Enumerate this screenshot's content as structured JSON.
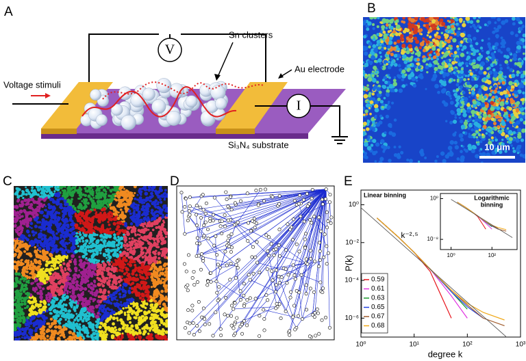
{
  "panels": {
    "a": {
      "label": "A",
      "v_meter": "V",
      "i_meter": "I",
      "sn_clusters": "Sn clusters",
      "au_electrode": "Au electrode",
      "voltage_stimuli": "Voltage stimuli",
      "substrate": "Si₃N₄ substrate"
    },
    "b": {
      "label": "B",
      "scale_bar": "10 μm"
    },
    "c": {
      "label": "C"
    },
    "d": {
      "label": "D"
    },
    "e": {
      "label": "E"
    }
  },
  "chart_data": {
    "type": "line",
    "x_label": "degree k",
    "y_label": "P(k)",
    "annotation": "Linear binning",
    "log_x": true,
    "log_y": true,
    "xlim": [
      1,
      1000
    ],
    "ylim": [
      1e-07,
      6
    ],
    "xticks": [
      {
        "value": 1,
        "label": "10⁰"
      },
      {
        "value": 10,
        "label": "10¹"
      },
      {
        "value": 100,
        "label": "10²"
      },
      {
        "value": 1000,
        "label": "10³"
      }
    ],
    "yticks": [
      {
        "value": 1,
        "label": "10⁰"
      },
      {
        "value": 0.01,
        "label": "10⁻²"
      },
      {
        "value": 0.0001,
        "label": "10⁻⁴"
      },
      {
        "value": 1e-06,
        "label": "10⁻⁶"
      }
    ],
    "x": [
      2,
      5,
      10,
      20,
      50,
      100,
      200,
      500
    ],
    "series": [
      {
        "name": "0.59",
        "color": "#e8141c",
        "values": [
          0.2,
          0.02,
          0.003,
          0.0003,
          1e-06,
          null,
          null,
          null
        ]
      },
      {
        "name": "0.61",
        "color": "#e030e0",
        "values": [
          0.2,
          0.02,
          0.003,
          0.0004,
          1.5e-05,
          1e-06,
          null,
          null
        ]
      },
      {
        "name": "0.63",
        "color": "#1a9a2a",
        "values": [
          0.2,
          0.02,
          0.003,
          0.0004,
          2.5e-05,
          3e-06,
          null,
          null
        ]
      },
      {
        "name": "0.65",
        "color": "#2040e0",
        "values": [
          0.2,
          0.02,
          0.003,
          0.0004,
          2.5e-05,
          4e-06,
          1e-06,
          null
        ]
      },
      {
        "name": "0.67",
        "color": "#a05a2a",
        "values": [
          0.2,
          0.02,
          0.003,
          0.0004,
          3e-05,
          5e-06,
          1e-06,
          4e-07
        ]
      },
      {
        "name": "0.68",
        "color": "#f0a818",
        "values": [
          0.2,
          0.02,
          0.003,
          0.0004,
          3e-05,
          6e-06,
          2e-06,
          8e-07
        ]
      }
    ],
    "fit": {
      "label": "k⁻²·⁵",
      "x": [
        1,
        1000
      ],
      "values": [
        0.7,
        2.2e-08
      ]
    },
    "inset": {
      "title_lines": [
        "Logarithmic",
        "binning"
      ],
      "xlim": [
        0.3,
        1700
      ],
      "ylim": [
        1e-10,
        10
      ],
      "xticks": [
        {
          "value": 1,
          "label": "10⁰"
        },
        {
          "value": 100,
          "label": "10²"
        }
      ],
      "yticks": [
        {
          "value": 1,
          "label": "10⁰"
        },
        {
          "value": 1e-08,
          "label": "10⁻⁸"
        }
      ]
    }
  }
}
